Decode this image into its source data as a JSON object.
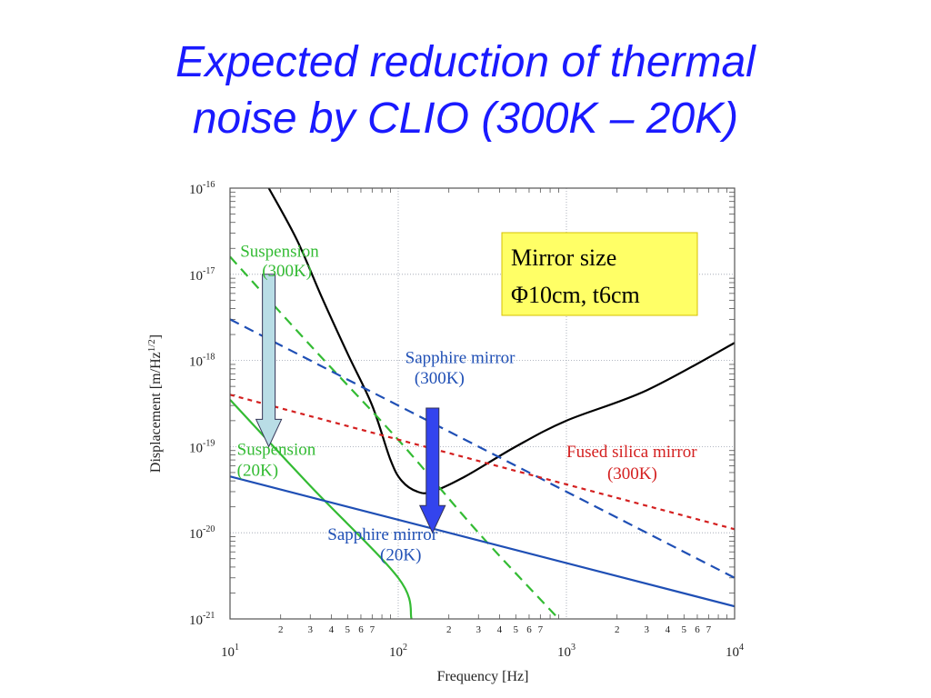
{
  "slide": {
    "title_line1": "Expected reduction of thermal",
    "title_line2": "noise by CLIO (300K – 20K)"
  },
  "colors": {
    "title": "#1a1aff",
    "total": "#000000",
    "suspension": "#33bb33",
    "sapphire": "#1f4fb5",
    "fused_silica": "#d42020",
    "box_fill": "#ffff66",
    "arrow_light": "#b9dde6",
    "arrow_dark": "#3344ee"
  },
  "chart_data": {
    "type": "line",
    "xlabel": "Frequency [Hz]",
    "ylabel": "Displacement [m/Hz^1/2]",
    "xscale": "log",
    "yscale": "log",
    "xlim": [
      10,
      10000
    ],
    "ylim": [
      1e-21,
      1e-16
    ],
    "grid": true,
    "x_ticks": [
      {
        "base": "10",
        "exp": "1",
        "value": 10
      },
      {
        "base": "10",
        "exp": "2",
        "value": 100
      },
      {
        "base": "10",
        "exp": "3",
        "value": 1000
      },
      {
        "base": "10",
        "exp": "4",
        "value": 10000
      }
    ],
    "x_minor_labels": [
      "2",
      "3",
      "4",
      "5",
      "6",
      "7"
    ],
    "y_ticks": [
      {
        "base": "10",
        "exp": "-16",
        "value": 1e-16
      },
      {
        "base": "10",
        "exp": "-17",
        "value": 1e-17
      },
      {
        "base": "10",
        "exp": "-18",
        "value": 1e-18
      },
      {
        "base": "10",
        "exp": "-19",
        "value": 1e-19
      },
      {
        "base": "10",
        "exp": "-20",
        "value": 1e-20
      },
      {
        "base": "10",
        "exp": "-21",
        "value": 1e-21
      }
    ],
    "series": [
      {
        "key": "total",
        "style": "solid",
        "color": "#000000",
        "points": [
          [
            17,
            1e-16
          ],
          [
            25,
            2.5e-17
          ],
          [
            35,
            5.5e-18
          ],
          [
            50,
            1.2e-18
          ],
          [
            70,
            3e-19
          ],
          [
            90,
            7e-20
          ],
          [
            105,
            4e-20
          ],
          [
            130,
            3e-20
          ],
          [
            160,
            3e-20
          ],
          [
            250,
            4.5e-20
          ],
          [
            500,
            1e-19
          ],
          [
            1000,
            2e-19
          ],
          [
            3000,
            4.5e-19
          ],
          [
            10000,
            1.6e-18
          ]
        ]
      },
      {
        "key": "suspension_300k",
        "style": "dashed",
        "color": "#33bb33",
        "points": [
          [
            10,
            1.6e-17
          ],
          [
            30,
            1.5e-18
          ],
          [
            100,
            1.2e-19
          ],
          [
            300,
            1e-20
          ],
          [
            900,
            1e-21
          ]
        ]
      },
      {
        "key": "suspension_20k",
        "style": "solid",
        "color": "#33bb33",
        "points": [
          [
            10,
            3.5e-19
          ],
          [
            30,
            3.5e-20
          ],
          [
            100,
            3e-21
          ],
          [
            120,
            1e-21
          ]
        ]
      },
      {
        "key": "sapphire_300k",
        "style": "dashed",
        "color": "#1f4fb5",
        "points": [
          [
            10,
            3e-18
          ],
          [
            1000,
            3e-20
          ],
          [
            10000,
            3e-21
          ]
        ]
      },
      {
        "key": "sapphire_20k",
        "style": "solid",
        "color": "#1f4fb5",
        "points": [
          [
            10,
            4.5e-20
          ],
          [
            10000,
            1.4e-21
          ]
        ]
      },
      {
        "key": "fused_silica_300k",
        "style": "dashed",
        "color": "#d42020",
        "points": [
          [
            10,
            4e-19
          ],
          [
            10000,
            1.1e-20
          ]
        ]
      }
    ],
    "annotations": [
      {
        "key": "ann-susp-300k-1",
        "text": "Suspension",
        "color": "#33bb33",
        "x": 11.5,
        "y": 1.6e-17
      },
      {
        "key": "ann-susp-300k-2",
        "text": "(300K)",
        "color": "#33bb33",
        "x": 15.5,
        "y": 9.5e-18
      },
      {
        "key": "ann-sapph-300k-1",
        "text": "Sapphire mirror",
        "color": "#1f4fb5",
        "x": 110,
        "y": 9.3e-19
      },
      {
        "key": "ann-sapph-300k-2",
        "text": "(300K)",
        "color": "#1f4fb5",
        "x": 125,
        "y": 5.4e-19
      },
      {
        "key": "ann-susp-20k-1",
        "text": "Suspension",
        "color": "#33bb33",
        "x": 11,
        "y": 8e-20
      },
      {
        "key": "ann-susp-20k-2",
        "text": "(20K)",
        "color": "#33bb33",
        "x": 11,
        "y": 4.6e-20
      },
      {
        "key": "ann-fused-1",
        "text": "Fused silica mirror",
        "color": "#d42020",
        "x": 1000,
        "y": 7.5e-20
      },
      {
        "key": "ann-fused-2",
        "text": "(300K)",
        "color": "#d42020",
        "x": 1750,
        "y": 4.2e-20
      },
      {
        "key": "ann-sapph-20k-1",
        "text": "Sapphire mirror",
        "color": "#1f4fb5",
        "x": 38,
        "y": 8.3e-21
      },
      {
        "key": "ann-sapph-20k-2",
        "text": "(20K)",
        "color": "#1f4fb5",
        "x": 78,
        "y": 4.8e-21
      }
    ],
    "arrows": [
      {
        "key": "suspension-reduction-arrow",
        "color": "#b9dde6",
        "x": 17,
        "from": 1e-17,
        "to": 1e-19
      },
      {
        "key": "sapphire-reduction-arrow",
        "color": "#3344ee",
        "x": 160,
        "from": 2.8e-19,
        "to": 1e-20
      }
    ],
    "info_box": {
      "line1": "Mirror size",
      "line2": "Φ10cm, t6cm"
    }
  }
}
